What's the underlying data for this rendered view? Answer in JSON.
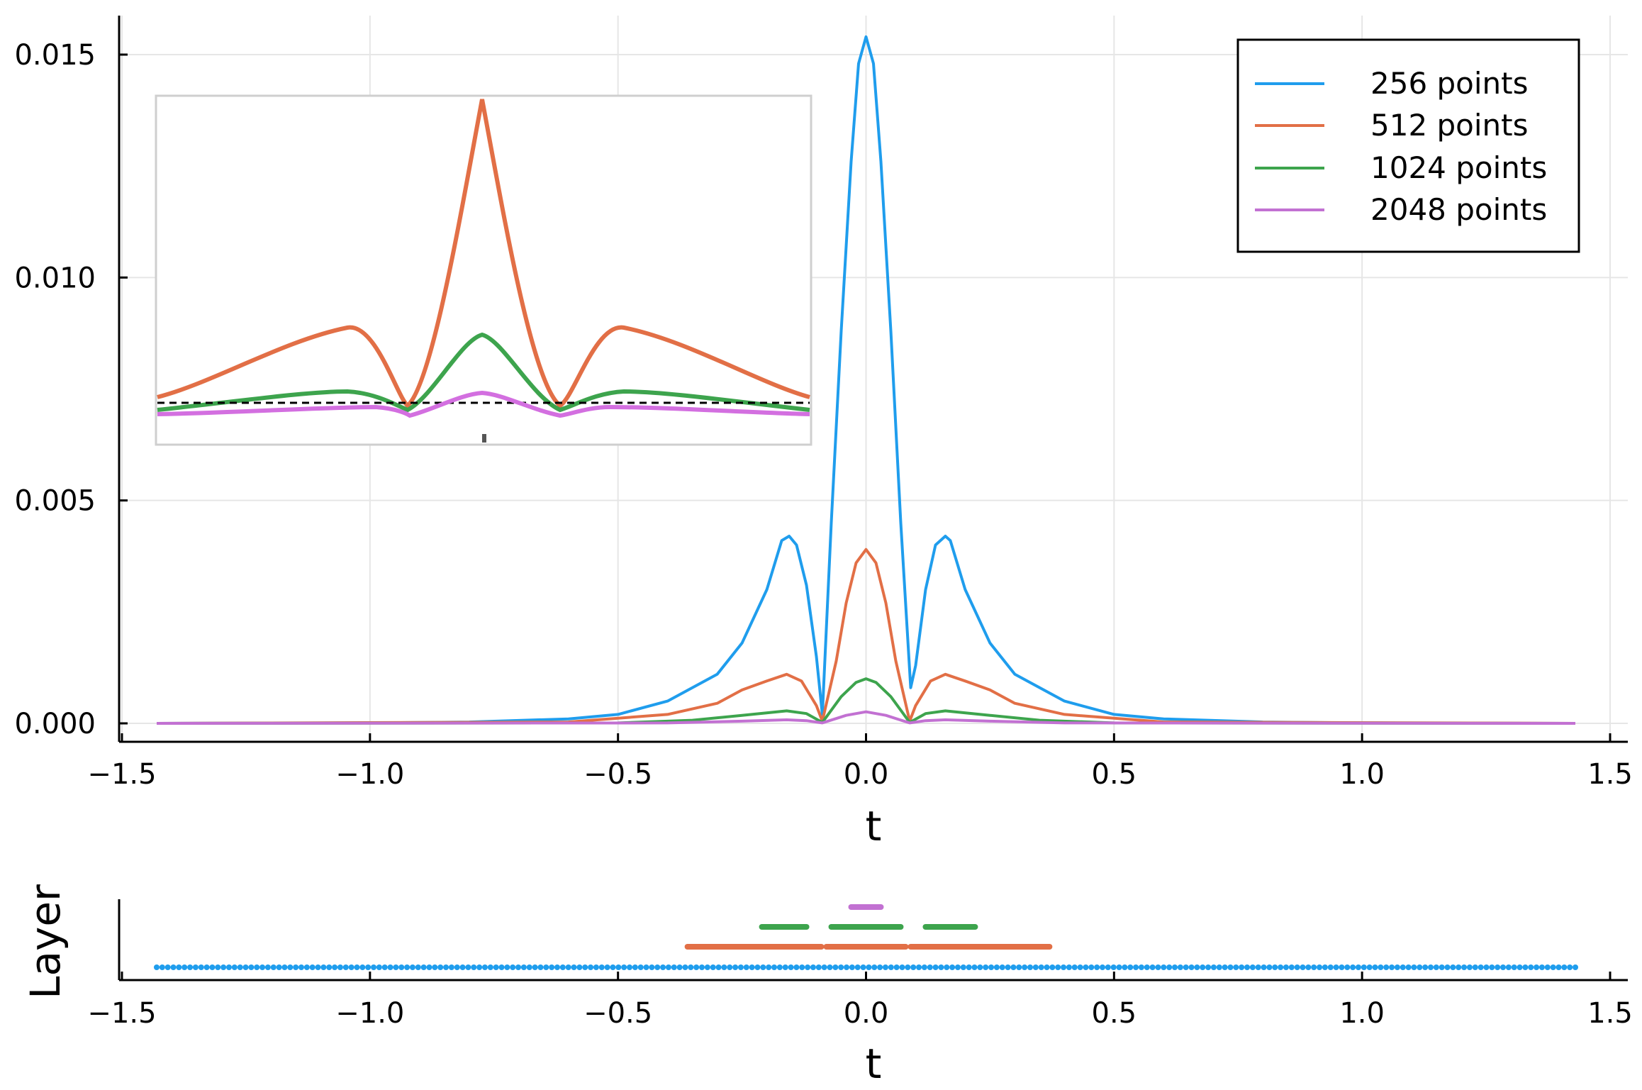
{
  "chart_data": [
    {
      "type": "line",
      "title": "",
      "xlabel": "t",
      "ylabel": "",
      "xlim": [
        -1.5,
        1.5
      ],
      "ylim": [
        0.0,
        0.0155
      ],
      "xticks": [
        -1.5,
        -1.0,
        -0.5,
        0.0,
        0.5,
        1.0,
        1.5
      ],
      "xtick_labels": [
        "−1.5",
        "−1.0",
        "−0.5",
        "0.0",
        "0.5",
        "1.0",
        "1.5"
      ],
      "yticks": [
        0.0,
        0.005,
        0.01,
        0.015
      ],
      "ytick_labels": [
        "0.000",
        "0.005",
        "0.010",
        "0.015"
      ],
      "grid": true,
      "legend_position": "top-right",
      "x_range": [
        -1.43,
        1.43
      ],
      "series": [
        {
          "name": "256 points",
          "color": "#1f9ded",
          "points": [
            [
              -1.43,
              0
            ],
            [
              -1.0,
              1e-05
            ],
            [
              -0.8,
              3e-05
            ],
            [
              -0.6,
              0.0001
            ],
            [
              -0.5,
              0.0002
            ],
            [
              -0.4,
              0.0005
            ],
            [
              -0.3,
              0.0011
            ],
            [
              -0.25,
              0.0018
            ],
            [
              -0.2,
              0.003
            ],
            [
              -0.17,
              0.0041
            ],
            [
              -0.155,
              0.0042
            ],
            [
              -0.14,
              0.004
            ],
            [
              -0.12,
              0.0031
            ],
            [
              -0.1,
              0.0015
            ],
            [
              -0.088,
              0.0002
            ],
            [
              -0.07,
              0.0045
            ],
            [
              -0.05,
              0.0088
            ],
            [
              -0.03,
              0.0126
            ],
            [
              -0.015,
              0.0148
            ],
            [
              0.0,
              0.0154
            ],
            [
              0.015,
              0.0148
            ],
            [
              0.03,
              0.0126
            ],
            [
              0.05,
              0.0088
            ],
            [
              0.07,
              0.0045
            ],
            [
              0.09,
              0.0008
            ],
            [
              0.1,
              0.0013
            ],
            [
              0.12,
              0.003
            ],
            [
              0.14,
              0.004
            ],
            [
              0.16,
              0.0042
            ],
            [
              0.17,
              0.0041
            ],
            [
              0.2,
              0.003
            ],
            [
              0.25,
              0.0018
            ],
            [
              0.3,
              0.0011
            ],
            [
              0.4,
              0.0005
            ],
            [
              0.5,
              0.0002
            ],
            [
              0.6,
              0.0001
            ],
            [
              0.8,
              3e-05
            ],
            [
              1.0,
              1e-05
            ],
            [
              1.43,
              0
            ]
          ]
        },
        {
          "name": "512 points",
          "color": "#e26f46",
          "points": [
            [
              -1.43,
              0
            ],
            [
              -0.6,
              3e-05
            ],
            [
              -0.4,
              0.0002
            ],
            [
              -0.3,
              0.00045
            ],
            [
              -0.25,
              0.00075
            ],
            [
              -0.2,
              0.00095
            ],
            [
              -0.16,
              0.0011
            ],
            [
              -0.13,
              0.00095
            ],
            [
              -0.1,
              0.0004
            ],
            [
              -0.088,
              5e-05
            ],
            [
              -0.06,
              0.0014
            ],
            [
              -0.04,
              0.0027
            ],
            [
              -0.02,
              0.0036
            ],
            [
              0.0,
              0.0039
            ],
            [
              0.02,
              0.0036
            ],
            [
              0.04,
              0.0027
            ],
            [
              0.06,
              0.0014
            ],
            [
              0.088,
              5e-05
            ],
            [
              0.1,
              0.0004
            ],
            [
              0.13,
              0.00095
            ],
            [
              0.16,
              0.0011
            ],
            [
              0.2,
              0.00095
            ],
            [
              0.25,
              0.00075
            ],
            [
              0.3,
              0.00045
            ],
            [
              0.4,
              0.0002
            ],
            [
              0.6,
              3e-05
            ],
            [
              1.43,
              0
            ]
          ]
        },
        {
          "name": "1024 points",
          "color": "#3da44d",
          "points": [
            [
              -1.43,
              0
            ],
            [
              -0.5,
              1e-05
            ],
            [
              -0.35,
              7e-05
            ],
            [
              -0.25,
              0.00018
            ],
            [
              -0.16,
              0.00028
            ],
            [
              -0.12,
              0.00022
            ],
            [
              -0.088,
              2e-05
            ],
            [
              -0.05,
              0.0006
            ],
            [
              -0.02,
              0.00092
            ],
            [
              0.0,
              0.001
            ],
            [
              0.02,
              0.00092
            ],
            [
              0.05,
              0.0006
            ],
            [
              0.088,
              2e-05
            ],
            [
              0.12,
              0.00022
            ],
            [
              0.16,
              0.00028
            ],
            [
              0.25,
              0.00018
            ],
            [
              0.35,
              7e-05
            ],
            [
              0.5,
              1e-05
            ],
            [
              1.43,
              0
            ]
          ]
        },
        {
          "name": "2048 points",
          "color": "#c271d2",
          "points": [
            [
              -1.43,
              0
            ],
            [
              -0.4,
              1e-05
            ],
            [
              -0.25,
              5e-05
            ],
            [
              -0.16,
              8e-05
            ],
            [
              -0.12,
              6e-05
            ],
            [
              -0.088,
              1e-05
            ],
            [
              -0.04,
              0.00018
            ],
            [
              0.0,
              0.00026
            ],
            [
              0.04,
              0.00018
            ],
            [
              0.088,
              1e-05
            ],
            [
              0.12,
              6e-05
            ],
            [
              0.16,
              8e-05
            ],
            [
              0.25,
              5e-05
            ],
            [
              0.4,
              1e-05
            ],
            [
              1.43,
              0
            ]
          ]
        }
      ]
    },
    {
      "type": "segments",
      "title": "",
      "xlabel": "t",
      "ylabel": "Layer",
      "xlim": [
        -1.5,
        1.5
      ],
      "xticks": [
        -1.5,
        -1.0,
        -0.5,
        0.0,
        0.5,
        1.0,
        1.5
      ],
      "xtick_labels": [
        "−1.5",
        "−1.0",
        "−0.5",
        "0.0",
        "0.5",
        "1.0",
        "1.5"
      ],
      "grid": false,
      "layers": [
        {
          "series": "256 points",
          "level": 1,
          "color": "#1f9ded",
          "style": "dots",
          "range": [
            -1.43,
            1.43
          ],
          "count": 256
        },
        {
          "series": "512 points",
          "level": 2,
          "color": "#e26f46",
          "style": "segments",
          "segments": [
            [
              -0.36,
              -0.09
            ],
            [
              -0.08,
              0.08
            ],
            [
              0.09,
              0.37
            ]
          ]
        },
        {
          "series": "1024 points",
          "level": 3,
          "color": "#3da44d",
          "style": "segments",
          "segments": [
            [
              -0.21,
              -0.12
            ],
            [
              -0.07,
              0.07
            ],
            [
              0.12,
              0.22
            ]
          ]
        },
        {
          "series": "2048 points",
          "level": 4,
          "color": "#c271d2",
          "style": "segments",
          "segments": [
            [
              -0.03,
              0.03
            ]
          ]
        }
      ]
    }
  ]
}
